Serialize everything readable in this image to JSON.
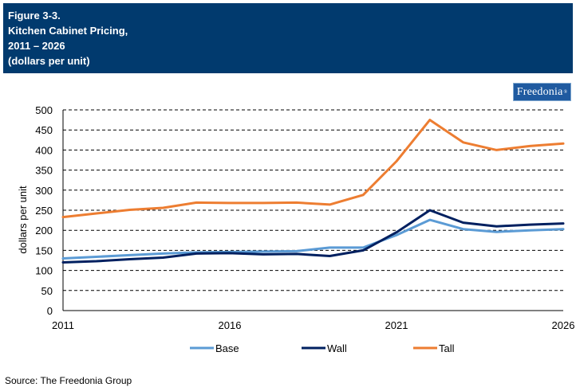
{
  "header": {
    "lines": [
      "Figure 3-3.",
      "Kitchen Cabinet Pricing,",
      "2011 – 2026",
      "(dollars per unit)"
    ],
    "background": "#013a6e"
  },
  "logo": {
    "text": "Freedonia",
    "background": "#1f5aa0"
  },
  "source": "Source: The Freedonia Group",
  "chart_data": {
    "type": "line",
    "title": "",
    "xlabel": "",
    "ylabel": "dollars per unit",
    "xlim": [
      2011,
      2026
    ],
    "ylim": [
      0,
      500
    ],
    "xticks": [
      "2011",
      "2016",
      "2021",
      "2026"
    ],
    "yticks": [
      "0",
      "50",
      "100",
      "150",
      "200",
      "250",
      "300",
      "350",
      "400",
      "450",
      "500"
    ],
    "grid": "horizontal dashed",
    "legend": "bottom",
    "x": [
      2011,
      2012,
      2013,
      2014,
      2015,
      2016,
      2017,
      2018,
      2019,
      2020,
      2021,
      2022,
      2023,
      2024,
      2025,
      2026
    ],
    "series": [
      {
        "name": "Base",
        "color": "#5b9bd5",
        "values": [
          130,
          134,
          138,
          142,
          145,
          146,
          147,
          148,
          157,
          157,
          188,
          226,
          203,
          196,
          200,
          203
        ]
      },
      {
        "name": "Wall",
        "color": "#002060",
        "values": [
          120,
          123,
          128,
          132,
          142,
          143,
          140,
          141,
          136,
          150,
          195,
          250,
          219,
          210,
          214,
          217
        ]
      },
      {
        "name": "Tall",
        "color": "#ed7d31",
        "values": [
          233,
          242,
          251,
          256,
          269,
          268,
          268,
          269,
          264,
          288,
          372,
          475,
          419,
          400,
          410,
          416
        ]
      }
    ]
  }
}
